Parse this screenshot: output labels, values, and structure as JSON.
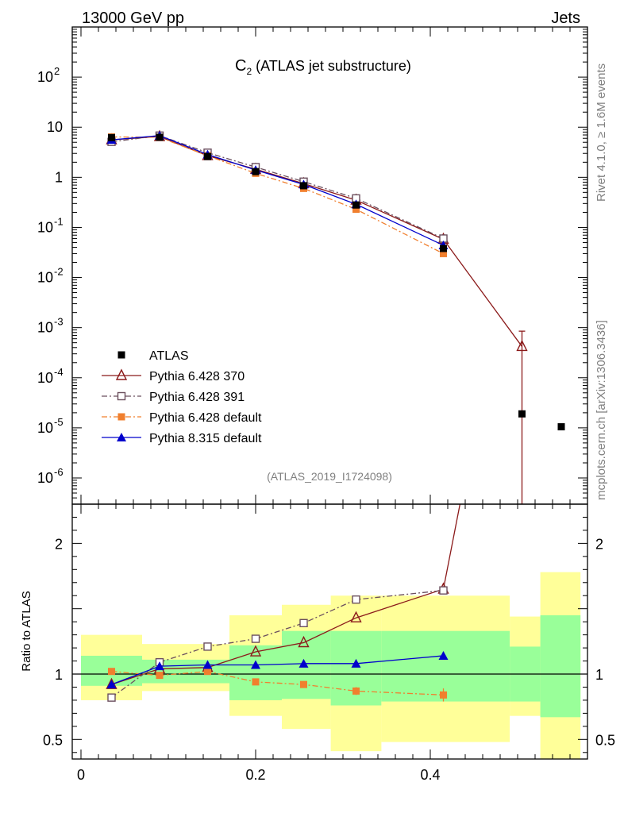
{
  "header": {
    "left": "13000 GeV pp",
    "right": "Jets"
  },
  "side": {
    "top": "Rivet 4.1.0, ≥ 1.6M events",
    "bottom": "mcplots.cern.ch [arXiv:1306.3436]"
  },
  "chart_data": [
    {
      "type": "line",
      "panel": "main",
      "title_main": "C",
      "title_sub": "2",
      "title_rest": " (ATLAS jet substructure)",
      "analysis_id": "(ATLAS_2019_I1724098)",
      "yscale": "log",
      "ylim": [
        3e-07,
        1000
      ],
      "xlim": [
        -0.01,
        0.58
      ],
      "yticks": [
        {
          "v": 1e-06,
          "base": "10",
          "exp": "-6"
        },
        {
          "v": 1e-05,
          "base": "10",
          "exp": "-5"
        },
        {
          "v": 0.0001,
          "base": "10",
          "exp": "-4"
        },
        {
          "v": 0.001,
          "base": "10",
          "exp": "-3"
        },
        {
          "v": 0.01,
          "base": "10",
          "exp": "-2"
        },
        {
          "v": 0.1,
          "base": "10",
          "exp": "-1"
        },
        {
          "v": 1,
          "base": "1",
          "exp": ""
        },
        {
          "v": 10,
          "base": "10",
          "exp": ""
        },
        {
          "v": 100,
          "base": "10",
          "exp": "2"
        }
      ],
      "legend": {
        "placement": "lower-left"
      },
      "series": [
        {
          "name": "ATLAS",
          "color": "#000000",
          "marker": "square-filled",
          "line": "none",
          "x": [
            0.035,
            0.09,
            0.145,
            0.2,
            0.255,
            0.315,
            0.415,
            0.505,
            0.55
          ],
          "y": [
            6.2,
            6.3,
            2.6,
            1.3,
            0.68,
            0.28,
            0.038,
            1.9e-05,
            1.05e-05
          ]
        },
        {
          "name": "Pythia 6.428 370",
          "color": "#8b1a1a",
          "marker": "triangle-open",
          "line": "solid",
          "x": [
            0.035,
            0.09,
            0.145,
            0.2,
            0.255,
            0.315,
            0.415,
            0.505
          ],
          "y": [
            5.6,
            6.5,
            2.7,
            1.45,
            0.75,
            0.35,
            0.058,
            0.00042
          ],
          "err_last": [
            0.00085,
            3e-07
          ]
        },
        {
          "name": "Pythia 6.428 391",
          "color": "#6b4f5e",
          "marker": "square-open",
          "line": "dashdot",
          "x": [
            0.035,
            0.09,
            0.145,
            0.2,
            0.255,
            0.315,
            0.415
          ],
          "y": [
            5.1,
            6.8,
            3.1,
            1.6,
            0.82,
            0.38,
            0.06
          ]
        },
        {
          "name": "Pythia 6.428 default",
          "color": "#f07f2e",
          "marker": "square-filled",
          "line": "dashdot",
          "x": [
            0.035,
            0.09,
            0.145,
            0.2,
            0.255,
            0.315,
            0.415
          ],
          "y": [
            6.4,
            6.3,
            2.7,
            1.2,
            0.6,
            0.23,
            0.03
          ]
        },
        {
          "name": "Pythia 8.315 default",
          "color": "#0000cc",
          "marker": "triangle-filled",
          "line": "solid",
          "x": [
            0.035,
            0.09,
            0.145,
            0.2,
            0.255,
            0.315,
            0.415
          ],
          "y": [
            5.6,
            6.8,
            2.85,
            1.4,
            0.72,
            0.29,
            0.044
          ]
        }
      ]
    },
    {
      "type": "line",
      "panel": "ratio",
      "ylabel": "Ratio to ATLAS",
      "ylim": [
        0.35,
        2.3
      ],
      "xlim": [
        -0.01,
        0.58
      ],
      "yticks": [
        {
          "v": 0.5,
          "label": "0.5"
        },
        {
          "v": 1,
          "label": "1"
        },
        {
          "v": 2,
          "label": "2"
        }
      ],
      "xticks": [
        {
          "v": 0,
          "label": "0"
        },
        {
          "v": 0.2,
          "label": "0.2"
        },
        {
          "v": 0.4,
          "label": "0.4"
        }
      ],
      "bands": [
        {
          "x0": 0.0,
          "x1": 0.07,
          "yel": [
            0.8,
            1.3
          ],
          "grn": [
            0.91,
            1.14
          ]
        },
        {
          "x0": 0.07,
          "x1": 0.17,
          "yel": [
            0.87,
            1.23
          ],
          "grn": [
            0.93,
            1.11
          ]
        },
        {
          "x0": 0.17,
          "x1": 0.23,
          "yel": [
            0.68,
            1.45
          ],
          "grn": [
            0.8,
            1.22
          ]
        },
        {
          "x0": 0.23,
          "x1": 0.286,
          "yel": [
            0.58,
            1.53
          ],
          "grn": [
            0.81,
            1.33
          ]
        },
        {
          "x0": 0.286,
          "x1": 0.344,
          "yel": [
            0.41,
            1.6
          ],
          "grn": [
            0.76,
            1.33
          ]
        },
        {
          "x0": 0.344,
          "x1": 0.491,
          "yel": [
            0.48,
            1.6
          ],
          "grn": [
            0.79,
            1.33
          ]
        },
        {
          "x0": 0.491,
          "x1": 0.526,
          "yel": [
            0.68,
            1.44
          ],
          "grn": [
            0.79,
            1.21
          ]
        },
        {
          "x0": 0.526,
          "x1": 0.572,
          "yel": [
            0.35,
            1.78
          ],
          "grn": [
            0.67,
            1.45
          ]
        }
      ],
      "series": [
        {
          "name": "Pythia 6.428 370",
          "color": "#8b1a1a",
          "marker": "triangle-open",
          "line": "solid",
          "x": [
            0.035,
            0.09,
            0.145,
            0.2,
            0.255,
            0.315,
            0.415
          ],
          "y": [
            0.92,
            1.04,
            1.05,
            1.17,
            1.24,
            1.43,
            1.65
          ],
          "tail": [
            0.434,
            2.3
          ]
        },
        {
          "name": "Pythia 6.428 391",
          "color": "#6b4f5e",
          "marker": "square-open",
          "line": "dashdot",
          "x": [
            0.035,
            0.09,
            0.145,
            0.2,
            0.255,
            0.315,
            0.415
          ],
          "y": [
            0.82,
            1.09,
            1.21,
            1.27,
            1.39,
            1.57,
            1.64
          ]
        },
        {
          "name": "Pythia 6.428 default",
          "color": "#f07f2e",
          "marker": "square-filled",
          "line": "dashdot",
          "x": [
            0.035,
            0.09,
            0.145,
            0.2,
            0.255,
            0.315,
            0.415
          ],
          "y": [
            1.02,
            0.99,
            1.02,
            0.94,
            0.92,
            0.87,
            0.84
          ],
          "err": [
            0,
            0,
            0,
            0,
            0,
            0.03,
            0.05
          ]
        },
        {
          "name": "Pythia 8.315 default",
          "color": "#0000cc",
          "marker": "triangle-filled",
          "line": "solid",
          "x": [
            0.035,
            0.09,
            0.145,
            0.2,
            0.255,
            0.315,
            0.415
          ],
          "y": [
            0.92,
            1.06,
            1.07,
            1.07,
            1.08,
            1.08,
            1.14
          ],
          "err": [
            0,
            0,
            0,
            0,
            0,
            0.02,
            0.03
          ]
        }
      ]
    }
  ]
}
